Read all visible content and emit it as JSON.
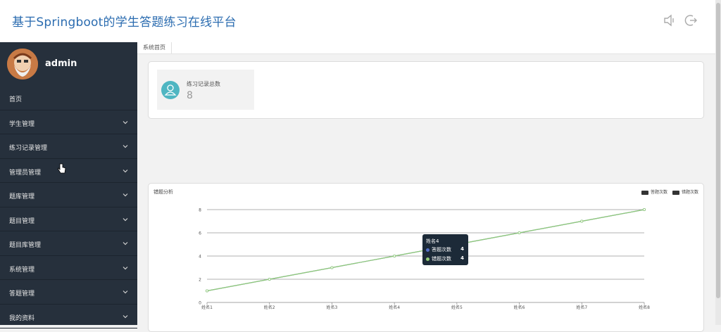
{
  "header": {
    "title": "基于Springboot的学生答题练习在线平台",
    "icons": [
      "speaker-icon",
      "logout-icon"
    ]
  },
  "sidebar": {
    "username": "admin",
    "items": [
      {
        "label": "首页",
        "expandable": false
      },
      {
        "label": "学生管理",
        "expandable": true
      },
      {
        "label": "练习记录管理",
        "expandable": true
      },
      {
        "label": "管理员管理",
        "expandable": true
      },
      {
        "label": "题库管理",
        "expandable": true
      },
      {
        "label": "题目管理",
        "expandable": true
      },
      {
        "label": "题目库管理",
        "expandable": true
      },
      {
        "label": "系统管理",
        "expandable": true
      },
      {
        "label": "答题管理",
        "expandable": true
      },
      {
        "label": "我的资料",
        "expandable": true
      }
    ]
  },
  "tabs": {
    "home": "系统首页"
  },
  "stats": {
    "label": "练习记录总数",
    "value": "8"
  },
  "colors": {
    "accent": "#2b6cb0",
    "sidebar": "#26303c",
    "stat_icon": "#4fb6c2",
    "series1": "#5470c6",
    "series2": "#91cc75"
  },
  "chart_data": {
    "type": "line",
    "title": "错题分析",
    "legend_position": "top-right",
    "categories": [
      "姓名1",
      "姓名2",
      "姓名3",
      "姓名4",
      "姓名5",
      "姓名6",
      "姓名7",
      "姓名8"
    ],
    "ylim": [
      0,
      8
    ],
    "yticks": [
      "0",
      "2",
      "4",
      "6",
      "8"
    ],
    "grid": true,
    "series": [
      {
        "name": "答题次数",
        "values": [
          1,
          2,
          3,
          4,
          5,
          6,
          7,
          8
        ]
      },
      {
        "name": "错题次数",
        "values": [
          1,
          2,
          3,
          4,
          5,
          6,
          7,
          8
        ]
      }
    ]
  },
  "tooltip": {
    "title": "姓名4",
    "rows": [
      {
        "label": "答题次数",
        "value": "4"
      },
      {
        "label": "错题次数",
        "value": "4"
      }
    ]
  }
}
